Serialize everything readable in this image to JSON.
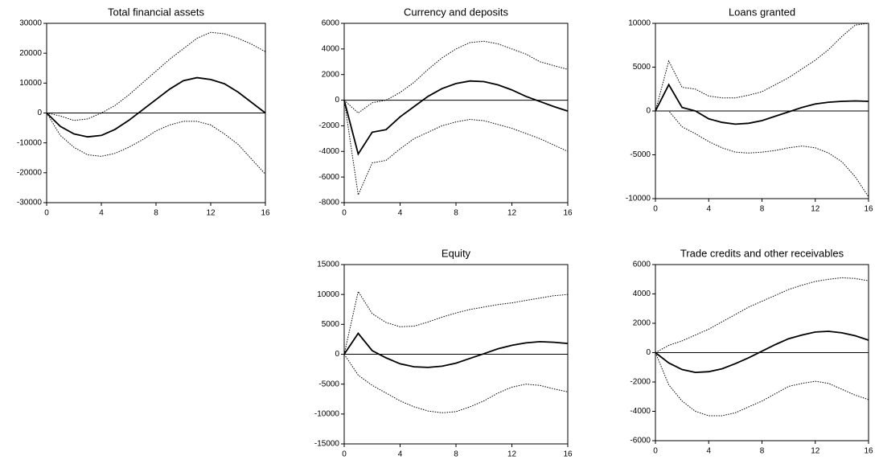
{
  "chart_data": [
    {
      "type": "line",
      "title": "Total financial assets",
      "x": [
        0,
        1,
        2,
        3,
        4,
        5,
        6,
        7,
        8,
        9,
        10,
        11,
        12,
        13,
        14,
        15,
        16
      ],
      "xlim": [
        0,
        16
      ],
      "xticks": [
        0,
        4,
        8,
        12,
        16
      ],
      "ylim": [
        -30000,
        30000
      ],
      "yticks": [
        -30000,
        -20000,
        -10000,
        0,
        10000,
        20000,
        30000
      ],
      "series": [
        {
          "color": "#000000",
          "style": "solid",
          "values": [
            0,
            -4500,
            -7000,
            -8000,
            -7500,
            -5500,
            -2500,
            1000,
            4500,
            8000,
            10800,
            11800,
            11200,
            9800,
            7000,
            3500,
            0
          ]
        },
        {
          "color": "#000000",
          "style": "dotted",
          "values": [
            0,
            -1000,
            -2500,
            -2000,
            0,
            2500,
            6000,
            10000,
            14000,
            18000,
            21500,
            25000,
            27000,
            26500,
            25000,
            23000,
            20500
          ]
        },
        {
          "color": "#000000",
          "style": "dotted",
          "values": [
            0,
            -7500,
            -11500,
            -14000,
            -14500,
            -13500,
            -11500,
            -9000,
            -6000,
            -4000,
            -2800,
            -2800,
            -4000,
            -7000,
            -10500,
            -15500,
            -20500
          ]
        }
      ]
    },
    {
      "type": "line",
      "title": "Currency and deposits",
      "x": [
        0,
        1,
        2,
        3,
        4,
        5,
        6,
        7,
        8,
        9,
        10,
        11,
        12,
        13,
        14,
        15,
        16
      ],
      "xlim": [
        0,
        16
      ],
      "xticks": [
        0,
        4,
        8,
        12,
        16
      ],
      "ylim": [
        -8000,
        6000
      ],
      "yticks": [
        -8000,
        -6000,
        -4000,
        -2000,
        0,
        2000,
        4000,
        6000
      ],
      "series": [
        {
          "color": "#000000",
          "style": "solid",
          "values": [
            0,
            -4200,
            -2500,
            -2300,
            -1300,
            -500,
            300,
            900,
            1300,
            1500,
            1450,
            1200,
            800,
            300,
            -100,
            -500,
            -850
          ]
        },
        {
          "color": "#000000",
          "style": "dotted",
          "values": [
            0,
            -1000,
            -200,
            0,
            600,
            1400,
            2400,
            3300,
            4000,
            4500,
            4600,
            4400,
            4000,
            3600,
            3000,
            2700,
            2400
          ]
        },
        {
          "color": "#000000",
          "style": "dotted",
          "values": [
            0,
            -7400,
            -4900,
            -4700,
            -3800,
            -3000,
            -2500,
            -2000,
            -1700,
            -1500,
            -1600,
            -1900,
            -2200,
            -2600,
            -3000,
            -3500,
            -4000
          ]
        }
      ]
    },
    {
      "type": "line",
      "title": "Loans granted",
      "x": [
        0,
        1,
        2,
        3,
        4,
        5,
        6,
        7,
        8,
        9,
        10,
        11,
        12,
        13,
        14,
        15,
        16
      ],
      "xlim": [
        0,
        16
      ],
      "xticks": [
        0,
        4,
        8,
        12,
        16
      ],
      "ylim": [
        -10000,
        10000
      ],
      "yticks": [
        -10000,
        -5000,
        0,
        5000,
        10000
      ],
      "series": [
        {
          "color": "#000000",
          "style": "solid",
          "values": [
            0,
            3000,
            400,
            0,
            -900,
            -1300,
            -1500,
            -1400,
            -1100,
            -600,
            -100,
            400,
            800,
            1000,
            1100,
            1150,
            1100
          ]
        },
        {
          "color": "#000000",
          "style": "dotted",
          "values": [
            0,
            5700,
            2700,
            2500,
            1700,
            1500,
            1500,
            1800,
            2200,
            3000,
            3800,
            4800,
            5800,
            7000,
            8500,
            9800,
            10000
          ]
        },
        {
          "color": "#000000",
          "style": "dotted",
          "values": [
            0,
            0,
            -1800,
            -2600,
            -3500,
            -4200,
            -4700,
            -4800,
            -4700,
            -4500,
            -4200,
            -4000,
            -4200,
            -4800,
            -5800,
            -7500,
            -9800
          ]
        }
      ]
    },
    {
      "type": "line",
      "title": "Equity",
      "x": [
        0,
        1,
        2,
        3,
        4,
        5,
        6,
        7,
        8,
        9,
        10,
        11,
        12,
        13,
        14,
        15,
        16
      ],
      "xlim": [
        0,
        16
      ],
      "xticks": [
        0,
        4,
        8,
        12,
        16
      ],
      "ylim": [
        -15000,
        15000
      ],
      "yticks": [
        -15000,
        -10000,
        -5000,
        0,
        5000,
        10000,
        15000
      ],
      "series": [
        {
          "color": "#000000",
          "style": "solid",
          "values": [
            0,
            3500,
            600,
            -600,
            -1600,
            -2100,
            -2200,
            -2000,
            -1500,
            -700,
            100,
            900,
            1500,
            1900,
            2100,
            2000,
            1800
          ]
        },
        {
          "color": "#000000",
          "style": "dotted",
          "values": [
            0,
            10500,
            6800,
            5300,
            4600,
            4700,
            5400,
            6200,
            6900,
            7500,
            7900,
            8300,
            8600,
            9000,
            9400,
            9800,
            10000
          ]
        },
        {
          "color": "#000000",
          "style": "dotted",
          "values": [
            0,
            -3500,
            -5200,
            -6500,
            -7800,
            -8800,
            -9500,
            -9800,
            -9600,
            -8800,
            -7800,
            -6500,
            -5500,
            -5000,
            -5200,
            -5800,
            -6300
          ]
        }
      ]
    },
    {
      "type": "line",
      "title": "Trade credits and other receivables",
      "x": [
        0,
        1,
        2,
        3,
        4,
        5,
        6,
        7,
        8,
        9,
        10,
        11,
        12,
        13,
        14,
        15,
        16
      ],
      "xlim": [
        0,
        16
      ],
      "xticks": [
        0,
        4,
        8,
        12,
        16
      ],
      "ylim": [
        -6000,
        6000
      ],
      "yticks": [
        -6000,
        -4000,
        -2000,
        0,
        2000,
        4000,
        6000
      ],
      "series": [
        {
          "color": "#000000",
          "style": "solid",
          "values": [
            0,
            -700,
            -1150,
            -1350,
            -1300,
            -1100,
            -750,
            -350,
            100,
            550,
            950,
            1200,
            1400,
            1450,
            1350,
            1150,
            850
          ]
        },
        {
          "color": "#000000",
          "style": "dotted",
          "values": [
            0,
            500,
            800,
            1200,
            1600,
            2100,
            2600,
            3100,
            3500,
            3900,
            4300,
            4600,
            4850,
            5000,
            5100,
            5050,
            4900
          ]
        },
        {
          "color": "#000000",
          "style": "dotted",
          "values": [
            0,
            -2200,
            -3300,
            -4000,
            -4300,
            -4300,
            -4100,
            -3700,
            -3300,
            -2800,
            -2300,
            -2100,
            -1950,
            -2100,
            -2500,
            -2900,
            -3200
          ]
        }
      ]
    }
  ]
}
